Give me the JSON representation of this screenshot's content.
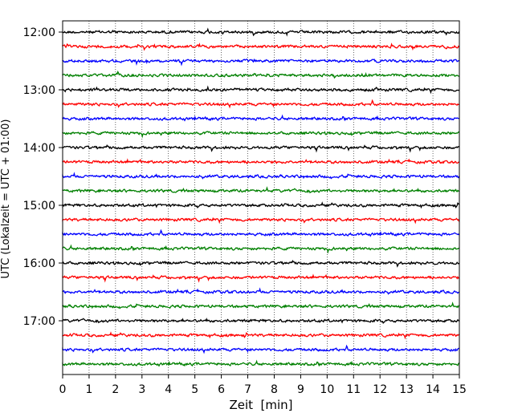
{
  "chart_data": {
    "type": "line",
    "chart_kind": "helicorder seismogram",
    "title": "",
    "xlabel": "Zeit  [min]",
    "ylabel": "UTC (Lokalzeit = UTC + 01:00)",
    "xlim": [
      0,
      15
    ],
    "x_ticks": [
      "0",
      "1",
      "2",
      "3",
      "4",
      "5",
      "6",
      "7",
      "8",
      "9",
      "10",
      "11",
      "12",
      "13",
      "14",
      "15"
    ],
    "y_tick_labels": [
      "12:00",
      "13:00",
      "14:00",
      "15:00",
      "16:00",
      "17:00"
    ],
    "line_start_times": [
      "12:00",
      "12:15",
      "12:30",
      "12:45",
      "13:00",
      "13:15",
      "13:30",
      "13:45",
      "14:00",
      "14:15",
      "14:30",
      "14:45",
      "15:00",
      "15:15",
      "15:30",
      "15:45",
      "16:00",
      "16:15",
      "16:30",
      "16:45",
      "17:00",
      "17:15",
      "17:30",
      "17:45"
    ],
    "minutes_per_line": 15,
    "trace_color_cycle": [
      "#000000",
      "#ff0000",
      "#0000ff",
      "#008000"
    ],
    "vertical_grid": "dotted, every 1 min",
    "legend": "none"
  }
}
